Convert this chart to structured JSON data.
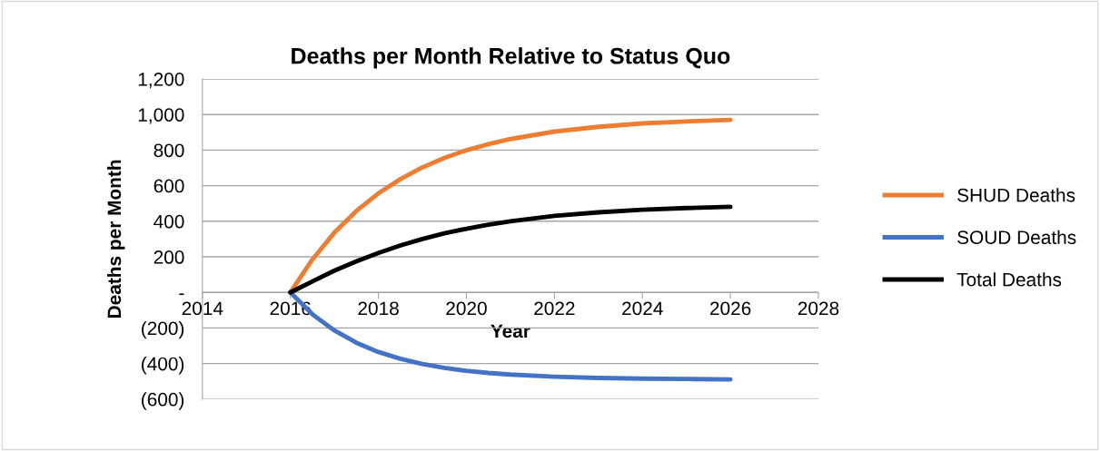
{
  "chart_data": {
    "type": "line",
    "title": "Deaths per Month Relative to Status Quo",
    "xlabel": "Year",
    "ylabel": "Deaths per Month",
    "x": [
      2016,
      2016.5,
      2017,
      2017.5,
      2018,
      2018.5,
      2019,
      2019.5,
      2020,
      2020.5,
      2021,
      2022,
      2023,
      2024,
      2025,
      2026
    ],
    "series": [
      {
        "name": "SHUD Deaths",
        "color": "#ed7d31",
        "values": [
          0,
          185,
          336,
          458,
          557,
          637,
          703,
          756,
          799,
          833,
          862,
          904,
          931,
          950,
          961,
          970
        ]
      },
      {
        "name": "SOUD Deaths",
        "color": "#4472c4",
        "values": [
          0,
          -123,
          -214,
          -283,
          -335,
          -373,
          -403,
          -424,
          -441,
          -453,
          -462,
          -474,
          -481,
          -485,
          -487,
          -489
        ]
      },
      {
        "name": "Total Deaths",
        "color": "#000000",
        "values": [
          0,
          62,
          122,
          175,
          222,
          264,
          300,
          332,
          358,
          380,
          400,
          430,
          450,
          465,
          474,
          481
        ]
      }
    ],
    "xlim": [
      2014,
      2028
    ],
    "xticks": [
      2014,
      2016,
      2018,
      2020,
      2022,
      2024,
      2026,
      2028
    ],
    "ylim": [
      -600,
      1200
    ],
    "yticks": [
      {
        "value": -600,
        "label": "(600)"
      },
      {
        "value": -400,
        "label": "(400)"
      },
      {
        "value": -200,
        "label": "(200)"
      },
      {
        "value": 0,
        "label": "-"
      },
      {
        "value": 200,
        "label": "200"
      },
      {
        "value": 400,
        "label": "400"
      },
      {
        "value": 600,
        "label": "600"
      },
      {
        "value": 800,
        "label": "800"
      },
      {
        "value": 1000,
        "label": "1,000"
      },
      {
        "value": 1200,
        "label": "1,200"
      }
    ],
    "grid": "y",
    "legend": "right",
    "marker": "none",
    "line_style": "solid"
  }
}
